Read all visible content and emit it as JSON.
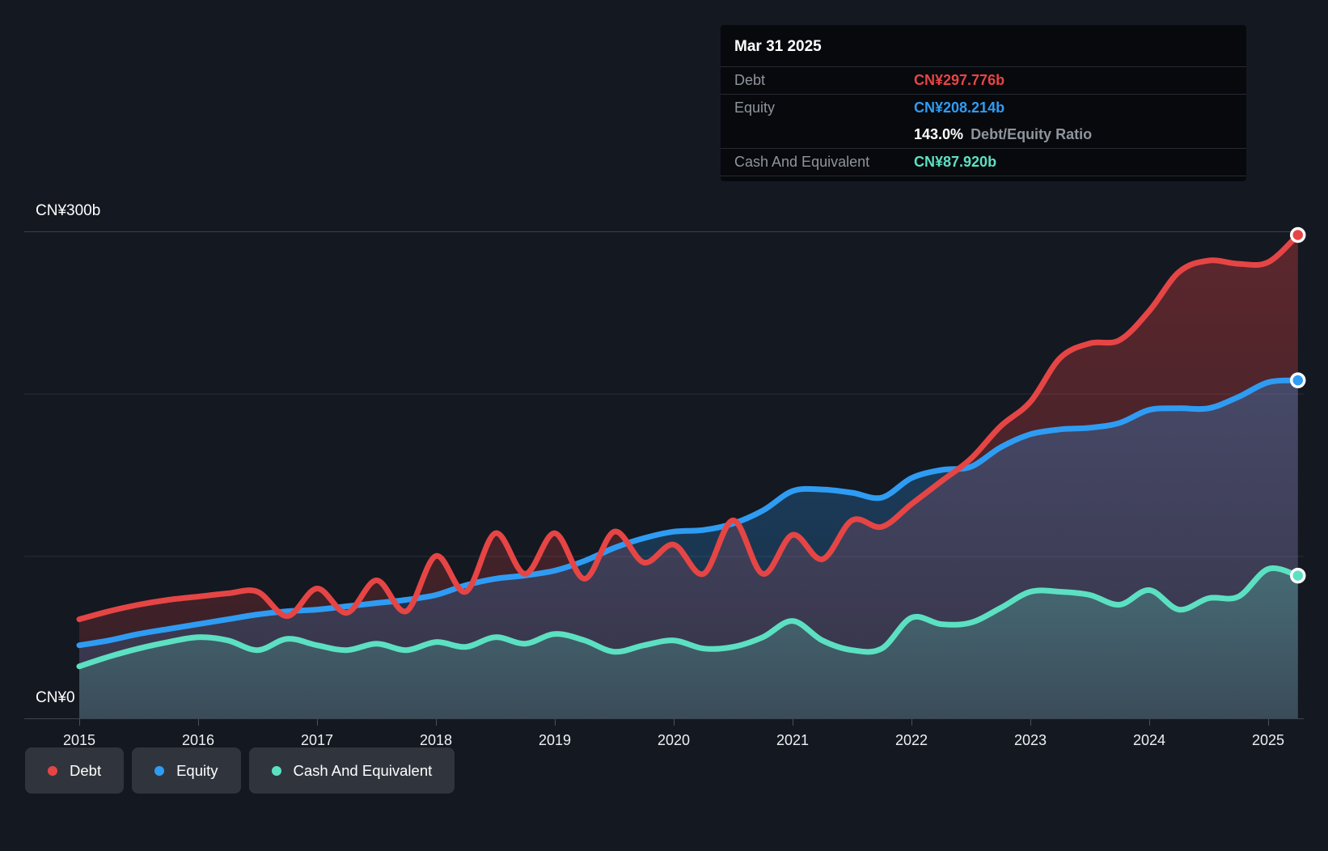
{
  "colors": {
    "debt": "#e64545",
    "equity": "#2f9cf3",
    "cash": "#5ce0c2",
    "background": "#141821",
    "tooltip_background": "#07090d",
    "legend_pill": "#30353d",
    "grid_major": "#3a414b",
    "grid_minor": "#282e38",
    "axis_text": "#eef1f3"
  },
  "tooltip": {
    "date": "Mar 31 2025",
    "debt": {
      "label": "Debt",
      "value": "CN¥297.776b"
    },
    "equity": {
      "label": "Equity",
      "value": "CN¥208.214b"
    },
    "ratio": {
      "value": "143.0%",
      "label": "Debt/Equity Ratio"
    },
    "cash": {
      "label": "Cash And Equivalent",
      "value": "CN¥87.920b"
    }
  },
  "legend": {
    "items": [
      {
        "label": "Debt",
        "color_key": "debt"
      },
      {
        "label": "Equity",
        "color_key": "equity"
      },
      {
        "label": "Cash And Equivalent",
        "color_key": "cash"
      }
    ]
  },
  "chart_data": {
    "type": "area",
    "title": "",
    "xlabel": "",
    "ylabel": "",
    "x_unit": "decimal_year",
    "ylim": [
      0,
      300
    ],
    "currency_unit": "CN¥ billions",
    "grid": "horizontal",
    "legend_position": "bottom",
    "x_ticks": [
      2015,
      2016,
      2017,
      2018,
      2019,
      2020,
      2021,
      2022,
      2023,
      2024,
      2025
    ],
    "y_gridlines": [
      300,
      200,
      100,
      0
    ],
    "y_labels": [
      {
        "value": 300,
        "text": "CN¥300b"
      },
      {
        "value": 0,
        "text": "CN¥0"
      }
    ],
    "x": [
      2015.0,
      2015.25,
      2015.5,
      2015.75,
      2016.0,
      2016.25,
      2016.5,
      2016.75,
      2017.0,
      2017.25,
      2017.5,
      2017.75,
      2018.0,
      2018.25,
      2018.5,
      2018.75,
      2019.0,
      2019.25,
      2019.5,
      2019.75,
      2020.0,
      2020.25,
      2020.5,
      2020.75,
      2021.0,
      2021.25,
      2021.5,
      2021.75,
      2022.0,
      2022.25,
      2022.5,
      2022.75,
      2023.0,
      2023.25,
      2023.5,
      2023.75,
      2024.0,
      2024.25,
      2024.5,
      2024.75,
      2025.0,
      2025.25
    ],
    "series": [
      {
        "name": "Debt",
        "color_key": "debt",
        "values": [
          61,
          66,
          70,
          73,
          75,
          77,
          78,
          63,
          80,
          65,
          85,
          66,
          100,
          78,
          114,
          89,
          114,
          86,
          115,
          96,
          107,
          89,
          122,
          89,
          113,
          98,
          122,
          118,
          132,
          146,
          160,
          180,
          195,
          222,
          231,
          233,
          251,
          275,
          282,
          280,
          281,
          297.776
        ]
      },
      {
        "name": "Equity",
        "color_key": "equity",
        "values": [
          45,
          48,
          52,
          55,
          58,
          61,
          64,
          66,
          67,
          69,
          71,
          73,
          76,
          82,
          86,
          88,
          91,
          97,
          105,
          111,
          115,
          116,
          120,
          128,
          140,
          141,
          139,
          136,
          148,
          153,
          155,
          167,
          175,
          178,
          179,
          182,
          190,
          191,
          191,
          198,
          207,
          208.214
        ]
      },
      {
        "name": "Cash And Equivalent",
        "color_key": "cash",
        "values": [
          32,
          38,
          43,
          47,
          50,
          48,
          42,
          49,
          45,
          42,
          46,
          42,
          47,
          44,
          50,
          46,
          52,
          48,
          41,
          45,
          48,
          43,
          44,
          50,
          60,
          48,
          42,
          43,
          62,
          58,
          59,
          68,
          78,
          78,
          76,
          70,
          79,
          67,
          74,
          75,
          92,
          87.92
        ]
      }
    ]
  }
}
